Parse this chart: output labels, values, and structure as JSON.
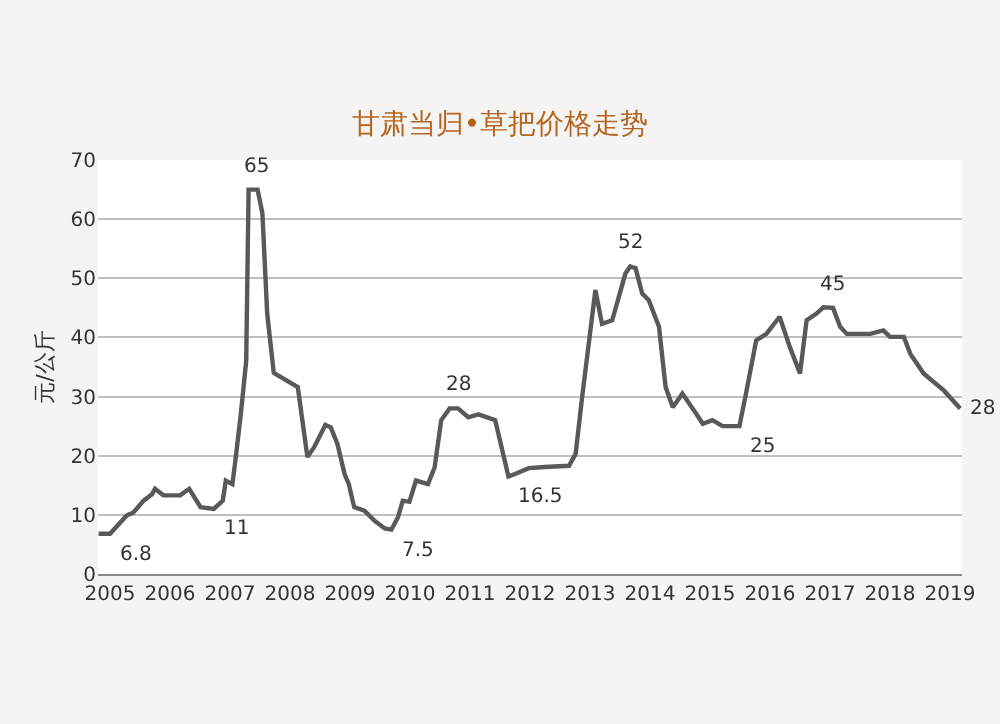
{
  "chart_data": {
    "type": "line",
    "title": "甘肃当归•草把价格走势",
    "ylabel": "元/公斤",
    "xlim": [
      2004.8,
      2019.2
    ],
    "xticks": [
      2005,
      2006,
      2007,
      2008,
      2009,
      2010,
      2011,
      2012,
      2013,
      2014,
      2015,
      2016,
      2017,
      2018,
      2019
    ],
    "ylim": [
      0,
      70
    ],
    "yticks": [
      0,
      10,
      20,
      30,
      40,
      50,
      60,
      70
    ],
    "grid": "y",
    "marker": "none",
    "line_style": "solid",
    "series": [
      {
        "color": "#595959",
        "x": [
          2004.81,
          2005.0,
          2005.28,
          2005.39,
          2005.56,
          2005.7,
          2005.75,
          2005.89,
          2006.17,
          2006.32,
          2006.51,
          2006.73,
          2006.88,
          2006.93,
          2007.04,
          2007.09,
          2007.18,
          2007.27,
          2007.31,
          2007.46,
          2007.54,
          2007.62,
          2007.73,
          2008.13,
          2008.29,
          2008.4,
          2008.59,
          2008.68,
          2008.79,
          2008.91,
          2008.98,
          2009.07,
          2009.24,
          2009.41,
          2009.58,
          2009.69,
          2009.8,
          2009.88,
          2009.99,
          2010.1,
          2010.3,
          2010.41,
          2010.52,
          2010.66,
          2010.8,
          2010.97,
          2011.14,
          2011.42,
          2011.64,
          2011.75,
          2011.98,
          2012.25,
          2012.65,
          2012.76,
          2012.87,
          2013.09,
          2013.2,
          2013.37,
          2013.59,
          2013.67,
          2013.76,
          2013.87,
          2013.98,
          2014.15,
          2014.26,
          2014.38,
          2014.54,
          2014.77,
          2014.88,
          2015.04,
          2015.21,
          2015.49,
          2015.6,
          2015.77,
          2015.94,
          2016.16,
          2016.33,
          2016.5,
          2016.61,
          2016.77,
          2016.89,
          2017.05,
          2017.17,
          2017.28,
          2017.67,
          2017.89,
          2018.0,
          2018.23,
          2018.34,
          2018.56,
          2018.9,
          2019.17
        ],
        "values": [
          6.8,
          6.8,
          9.9,
          10.4,
          12.4,
          13.5,
          14.4,
          13.3,
          13.3,
          14.4,
          11.3,
          11,
          12.4,
          15.8,
          15.2,
          19.2,
          27,
          36,
          65,
          65,
          61,
          44,
          34,
          31.6,
          19.8,
          21.4,
          25.2,
          24.8,
          22,
          16.9,
          15.2,
          11.3,
          10.7,
          9,
          7.7,
          7.5,
          9.6,
          12.4,
          12.2,
          15.8,
          15.2,
          18,
          26,
          28,
          28,
          26.5,
          27,
          26,
          16.5,
          16.9,
          17.9,
          18.1,
          18.3,
          20.3,
          30,
          48,
          42.3,
          42.9,
          50.8,
          52,
          51.7,
          47.4,
          46.3,
          41.8,
          31.6,
          28.2,
          30.5,
          27.1,
          25.4,
          26,
          25,
          25,
          30.5,
          39.5,
          40.6,
          43.5,
          38.4,
          33.9,
          42.9,
          44,
          45.1,
          45,
          41.8,
          40.6,
          40.6,
          41.2,
          40.1,
          40.1,
          37.2,
          33.9,
          31,
          28
        ]
      }
    ],
    "annotations": [
      {
        "text": "6.8",
        "x": 2005.0,
        "y": 6.8
      },
      {
        "text": "11",
        "x": 2006.73,
        "y": 11
      },
      {
        "text": "65",
        "x": 2007.46,
        "y": 65
      },
      {
        "text": "7.5",
        "x": 2009.69,
        "y": 7.5
      },
      {
        "text": "28",
        "x": 2010.8,
        "y": 28
      },
      {
        "text": "16.5",
        "x": 2011.64,
        "y": 16.5
      },
      {
        "text": "52",
        "x": 2013.67,
        "y": 52
      },
      {
        "text": "25",
        "x": 2015.49,
        "y": 25
      },
      {
        "text": "45",
        "x": 2017.05,
        "y": 45
      },
      {
        "text": "28",
        "x": 2019.17,
        "y": 28
      }
    ]
  }
}
